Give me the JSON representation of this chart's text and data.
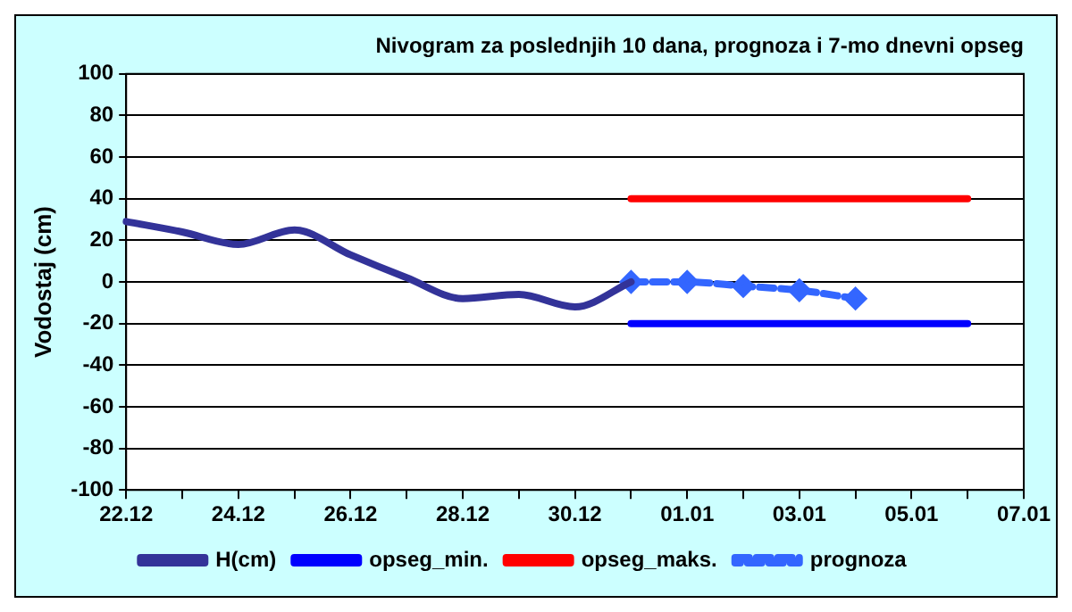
{
  "chart_data": {
    "type": "line",
    "title": "Nivogram za poslednjih 10 dana, prognoza i 7-mo dnevni opseg",
    "ylabel": "Vodostaj (cm)",
    "categories": [
      "22.12",
      null,
      "24.12",
      null,
      "26.12",
      null,
      "28.12",
      null,
      "30.12",
      null,
      "01.01",
      null,
      "03.01",
      null,
      "05.01",
      null,
      "07.01"
    ],
    "ylim": [
      -100,
      100
    ],
    "yticks": [
      -100,
      -80,
      -60,
      -40,
      -20,
      0,
      20,
      40,
      60,
      80,
      100
    ],
    "grid": "y",
    "legend": "bottom",
    "series": [
      {
        "name": "H(cm)",
        "color": "#333399",
        "values": [
          29,
          24,
          18,
          25,
          13,
          2,
          -8,
          -6,
          -12,
          0,
          null,
          null,
          null,
          null,
          null,
          null,
          null
        ],
        "marker": "none",
        "line_style": "solid"
      },
      {
        "name": "opseg_min.",
        "color": "#0000ff",
        "values": [
          null,
          null,
          null,
          null,
          null,
          null,
          null,
          null,
          null,
          -20,
          -20,
          -20,
          -20,
          -20,
          -20,
          -20,
          null
        ],
        "marker": "none",
        "line_style": "solid"
      },
      {
        "name": "opseg_maks.",
        "color": "#ff0000",
        "values": [
          null,
          null,
          null,
          null,
          null,
          null,
          null,
          null,
          null,
          40,
          40,
          40,
          40,
          40,
          40,
          40,
          null
        ],
        "marker": "none",
        "line_style": "solid"
      },
      {
        "name": "prognoza",
        "color": "#3366ff",
        "values": [
          null,
          null,
          null,
          null,
          null,
          null,
          null,
          null,
          null,
          0,
          0,
          -2,
          -4,
          -8,
          null,
          null,
          null
        ],
        "marker": "diamond",
        "line_style": "dashed"
      }
    ]
  }
}
